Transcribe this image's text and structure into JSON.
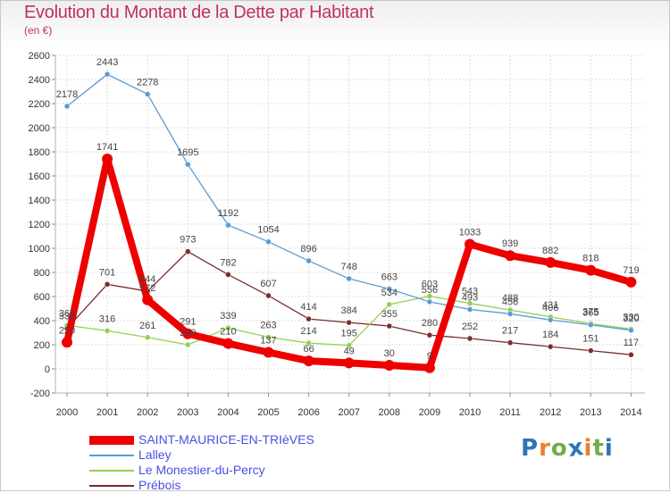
{
  "chart_data": {
    "type": "line",
    "title": "Evolution du Montant de la Dette par Habitant",
    "subtitle": "(en €)",
    "x": [
      "2000",
      "2001",
      "2002",
      "2003",
      "2004",
      "2005",
      "2006",
      "2007",
      "2008",
      "2009",
      "2010",
      "2011",
      "2012",
      "2013",
      "2014"
    ],
    "ylim": [
      -200,
      2600
    ],
    "yticks": [
      -200,
      0,
      200,
      400,
      600,
      800,
      1000,
      1200,
      1400,
      1600,
      1800,
      2000,
      2200,
      2400,
      2600
    ],
    "grid": true,
    "legend_position": "bottom-left",
    "series": [
      {
        "name": "SAINT-MAURICE-EN-TRIèVES",
        "color": "#ee0000",
        "values": [
          220,
          1741,
          572,
          291,
          210,
          137,
          66,
          49,
          30,
          9,
          1033,
          939,
          882,
          818,
          719
        ]
      },
      {
        "name": "Lalley",
        "color": "#5b9bd5",
        "values": [
          2178,
          2443,
          2278,
          1695,
          1192,
          1054,
          896,
          748,
          663,
          556,
          493,
          456,
          406,
          365,
          320
        ]
      },
      {
        "name": "Le Monestier-du-Percy",
        "color": "#92d050",
        "values": [
          361,
          316,
          261,
          200,
          339,
          263,
          214,
          195,
          534,
          603,
          543,
          488,
          431,
          375,
          330
        ]
      },
      {
        "name": "Prébois",
        "color": "#7b2c2c",
        "values": [
          336,
          701,
          644,
          973,
          782,
          607,
          414,
          384,
          355,
          280,
          252,
          217,
          184,
          151,
          117
        ]
      }
    ]
  },
  "logo": {
    "letters": [
      "P",
      "r",
      "o",
      "x",
      "i",
      "t",
      "i"
    ],
    "colors": [
      "#2e75b6",
      "#ed7d31",
      "#70ad47",
      "#2e75b6",
      "#ed7d31",
      "#70ad47",
      "#2e75b6"
    ]
  }
}
